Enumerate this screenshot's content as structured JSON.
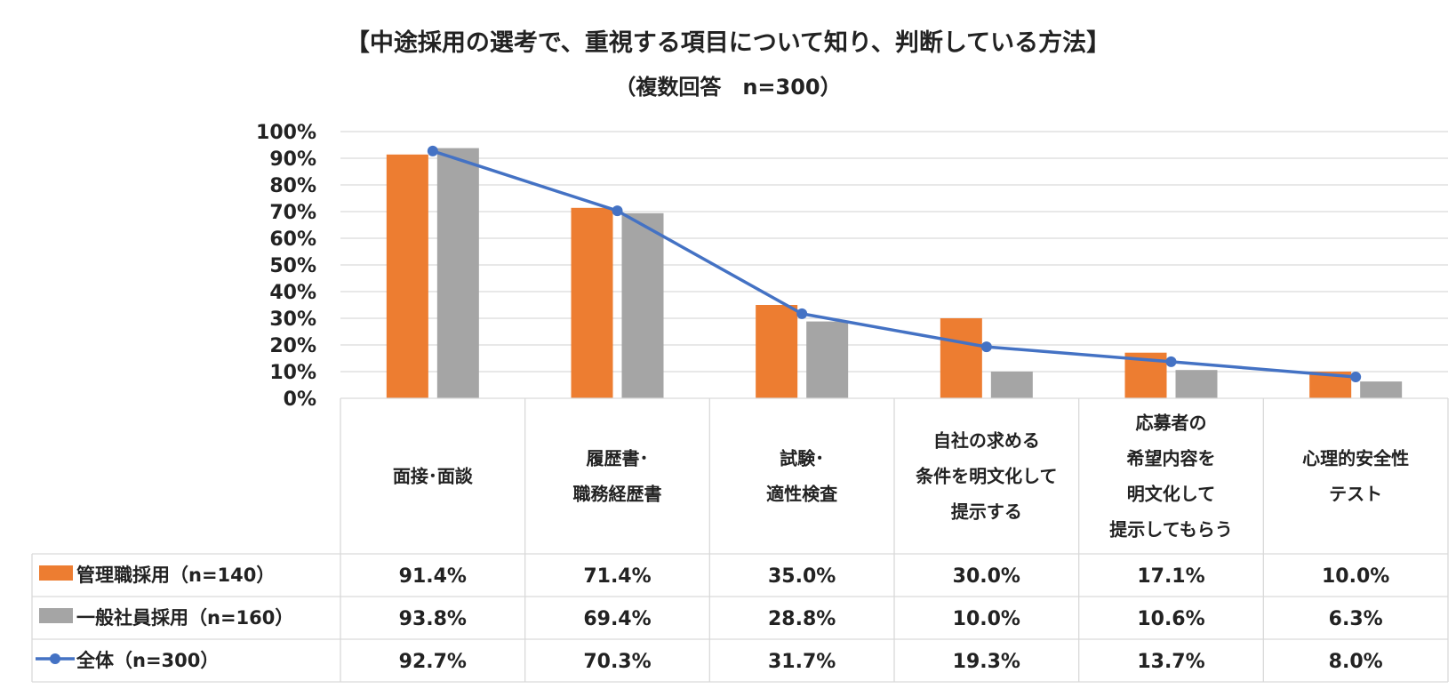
{
  "chart_data": {
    "type": "bar",
    "title": "【中途採用の選考で、重視する項目について知り、判断している方法】",
    "subtitle": "（複数回答　n=300）",
    "categories": [
      [
        "面接･面談"
      ],
      [
        "履歴書･",
        "職務経歴書"
      ],
      [
        "試験･",
        "適性検査"
      ],
      [
        "自社の求める",
        "条件を明文化して",
        "提示する"
      ],
      [
        "応募者の",
        "希望内容を",
        "明文化して",
        "提示してもらう"
      ],
      [
        "心理的安全性",
        "テスト"
      ]
    ],
    "ylim": [
      0,
      100
    ],
    "yticks": [
      "0%",
      "10%",
      "20%",
      "30%",
      "40%",
      "50%",
      "60%",
      "70%",
      "80%",
      "90%",
      "100%"
    ],
    "grid": true,
    "series": [
      {
        "name": "管理職採用（n=140）",
        "kind": "bar",
        "color": "#ED7D31",
        "values": [
          91.4,
          71.4,
          35.0,
          30.0,
          17.1,
          10.0
        ],
        "labels": [
          "91.4%",
          "71.4%",
          "35.0%",
          "30.0%",
          "17.1%",
          "10.0%"
        ]
      },
      {
        "name": "一般社員採用（n=160）",
        "kind": "bar",
        "color": "#A5A5A5",
        "values": [
          93.8,
          69.4,
          28.8,
          10.0,
          10.6,
          6.3
        ],
        "labels": [
          "93.8%",
          "69.4%",
          "28.8%",
          "10.0%",
          "10.6%",
          "6.3%"
        ]
      },
      {
        "name": "全体（n=300）",
        "kind": "line",
        "color": "#4472C4",
        "values": [
          92.7,
          70.3,
          31.7,
          19.3,
          13.7,
          8.0
        ],
        "labels": [
          "92.7%",
          "70.3%",
          "31.7%",
          "19.3%",
          "13.7%",
          "8.0%"
        ]
      }
    ]
  }
}
